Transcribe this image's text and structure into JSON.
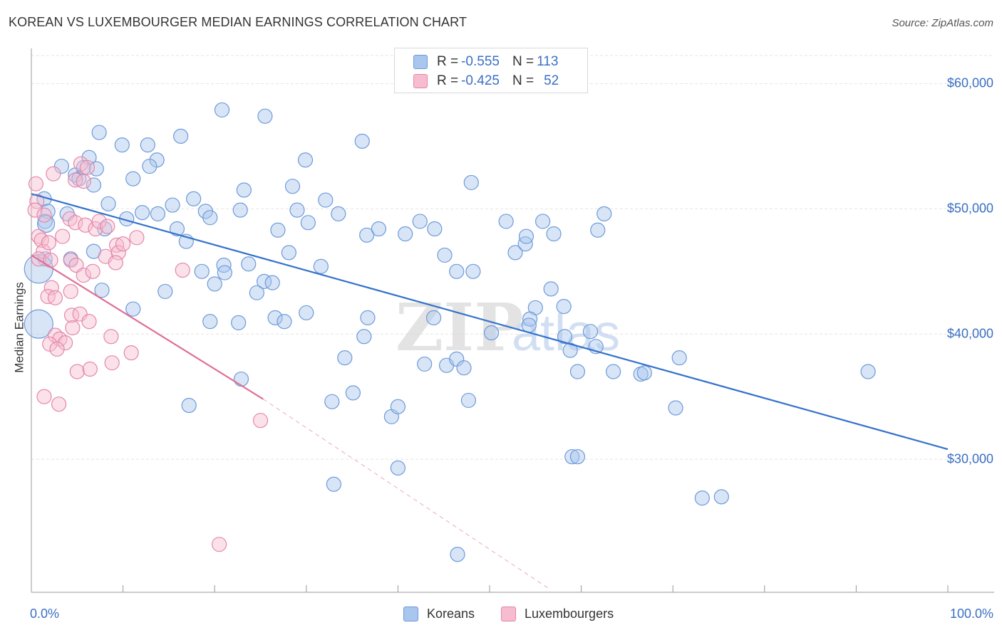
{
  "title": "KOREAN VS LUXEMBOURGER MEDIAN EARNINGS CORRELATION CHART",
  "source": "Source: ZipAtlas.com",
  "watermark": {
    "zip": "ZIP",
    "atlas": "atlas"
  },
  "legend_stats": [
    {
      "r_label": "R = ",
      "r_value": "-0.555",
      "n_label": "N = ",
      "n_value": "113",
      "color": "#a8c6ee",
      "border": "#6d9ad8"
    },
    {
      "r_label": "R = ",
      "r_value": "-0.425",
      "n_label": "N = ",
      "n_value": "52",
      "color": "#f7bcd0",
      "border": "#e487a8"
    }
  ],
  "chart_data": {
    "type": "scatter",
    "title": "KOREAN VS LUXEMBOURGER MEDIAN EARNINGS CORRELATION CHART",
    "ylabel": "Median Earnings",
    "xlabel": "",
    "xlim": [
      0,
      100
    ],
    "ylim": [
      19600,
      62700
    ],
    "x_tick_labels": [
      "0.0%",
      "100.0%"
    ],
    "y_ticks": [
      {
        "value": 30000,
        "label": "$30,000"
      },
      {
        "value": 40000,
        "label": "$40,000"
      },
      {
        "value": 50000,
        "label": "$50,000"
      },
      {
        "value": 60000,
        "label": "$60,000"
      }
    ],
    "grid": true,
    "legend_position": "bottom-center",
    "series": [
      {
        "name": "Koreans",
        "color": "#6d9ad8",
        "fill": "#a8c6ee",
        "trend": {
          "x": [
            0,
            100
          ],
          "y": [
            51200,
            30800
          ],
          "color": "#3372cc"
        },
        "points": [
          [
            1.4,
            50.8
          ],
          [
            1.8,
            49.8
          ],
          [
            1.5,
            49.0
          ],
          [
            1.6,
            48.8
          ],
          [
            3.3,
            53.4
          ],
          [
            3.9,
            49.6
          ],
          [
            4.8,
            52.7
          ],
          [
            6.3,
            54.1
          ],
          [
            5.2,
            52.4
          ],
          [
            5.7,
            53.3
          ],
          [
            7.1,
            53.2
          ],
          [
            6.8,
            51.9
          ],
          [
            7.4,
            56.1
          ],
          [
            9.9,
            55.1
          ],
          [
            8.4,
            50.4
          ],
          [
            8.0,
            48.4
          ],
          [
            10.4,
            49.2
          ],
          [
            12.7,
            55.1
          ],
          [
            11.1,
            52.4
          ],
          [
            13.7,
            53.9
          ],
          [
            12.9,
            53.4
          ],
          [
            12.1,
            49.7
          ],
          [
            13.8,
            49.6
          ],
          [
            15.4,
            50.3
          ],
          [
            15.9,
            48.4
          ],
          [
            16.3,
            55.8
          ],
          [
            16.9,
            47.4
          ],
          [
            17.7,
            50.8
          ],
          [
            19.0,
            49.8
          ],
          [
            19.5,
            49.3
          ],
          [
            20.8,
            57.9
          ],
          [
            23.2,
            51.5
          ],
          [
            22.8,
            49.9
          ],
          [
            25.5,
            57.4
          ],
          [
            26.9,
            48.3
          ],
          [
            28.1,
            46.5
          ],
          [
            28.5,
            51.8
          ],
          [
            29.0,
            49.9
          ],
          [
            29.9,
            53.9
          ],
          [
            30.2,
            48.9
          ],
          [
            32.1,
            50.7
          ],
          [
            33.5,
            49.6
          ],
          [
            36.6,
            47.9
          ],
          [
            36.1,
            55.4
          ],
          [
            37.9,
            48.4
          ],
          [
            40.8,
            48.0
          ],
          [
            42.4,
            49.0
          ],
          [
            44.0,
            48.4
          ],
          [
            45.1,
            46.3
          ],
          [
            46.4,
            45.0
          ],
          [
            48.2,
            45.0
          ],
          [
            48.0,
            52.1
          ],
          [
            51.8,
            49.0
          ],
          [
            50.2,
            40.1
          ],
          [
            52.8,
            46.5
          ],
          [
            53.9,
            47.2
          ],
          [
            54.0,
            47.8
          ],
          [
            55.0,
            42.1
          ],
          [
            54.4,
            41.2
          ],
          [
            55.8,
            49.0
          ],
          [
            57.0,
            48.0
          ],
          [
            56.7,
            43.6
          ],
          [
            58.1,
            42.2
          ],
          [
            58.2,
            39.8
          ],
          [
            59.0,
            30.2
          ],
          [
            59.6,
            37.0
          ],
          [
            61.0,
            40.2
          ],
          [
            61.6,
            39.0
          ],
          [
            61.8,
            48.3
          ],
          [
            62.5,
            49.6
          ],
          [
            63.5,
            37.0
          ],
          [
            66.5,
            36.8
          ],
          [
            70.3,
            34.1
          ],
          [
            73.2,
            26.9
          ],
          [
            75.3,
            27.0
          ],
          [
            91.3,
            37.0
          ],
          [
            1.5,
            46.0
          ],
          [
            4.3,
            46.0
          ],
          [
            6.8,
            46.6
          ],
          [
            7.7,
            43.5
          ],
          [
            11.1,
            42.0
          ],
          [
            14.6,
            43.4
          ],
          [
            18.6,
            45.0
          ],
          [
            19.5,
            41.0
          ],
          [
            20.0,
            44.0
          ],
          [
            21.0,
            45.5
          ],
          [
            21.1,
            44.9
          ],
          [
            22.6,
            40.9
          ],
          [
            22.9,
            36.4
          ],
          [
            23.7,
            45.6
          ],
          [
            24.6,
            43.3
          ],
          [
            25.4,
            44.2
          ],
          [
            26.3,
            44.1
          ],
          [
            26.6,
            41.3
          ],
          [
            27.6,
            41.0
          ],
          [
            30.0,
            41.7
          ],
          [
            31.6,
            45.4
          ],
          [
            32.8,
            34.6
          ],
          [
            33.0,
            28.0
          ],
          [
            34.2,
            38.1
          ],
          [
            35.1,
            35.3
          ],
          [
            36.3,
            39.8
          ],
          [
            36.7,
            41.3
          ],
          [
            39.3,
            33.4
          ],
          [
            40.0,
            34.2
          ],
          [
            40.0,
            29.3
          ],
          [
            42.9,
            37.6
          ],
          [
            43.9,
            41.3
          ],
          [
            45.3,
            37.5
          ],
          [
            46.4,
            38.0
          ],
          [
            46.5,
            22.4
          ],
          [
            47.2,
            37.3
          ],
          [
            47.7,
            34.7
          ],
          [
            58.8,
            38.7
          ],
          [
            59.6,
            30.2
          ],
          [
            66.9,
            36.9
          ],
          [
            70.7,
            38.1
          ],
          [
            0.8,
            45.2
          ],
          [
            0.8,
            40.8
          ],
          [
            17.2,
            34.3
          ],
          [
            54.3,
            40.7
          ]
        ],
        "sizes_note": "two larger points near x=0.8"
      },
      {
        "name": "Luxembourgers",
        "color": "#e487a8",
        "fill": "#f7bcd0",
        "trend": {
          "x": [
            0,
            25.3
          ],
          "y": [
            46300,
            34800
          ],
          "dashed_to": [
            56.6,
            19600
          ],
          "color": "#e07095"
        },
        "points": [
          [
            0.5,
            52.0
          ],
          [
            0.6,
            50.6
          ],
          [
            0.4,
            49.9
          ],
          [
            1.4,
            49.5
          ],
          [
            0.8,
            47.8
          ],
          [
            1.1,
            47.5
          ],
          [
            1.3,
            46.6
          ],
          [
            0.8,
            46.0
          ],
          [
            1.9,
            47.3
          ],
          [
            3.4,
            47.8
          ],
          [
            2.4,
            52.8
          ],
          [
            4.8,
            52.3
          ],
          [
            5.4,
            53.6
          ],
          [
            6.1,
            53.3
          ],
          [
            5.7,
            52.2
          ],
          [
            4.2,
            49.2
          ],
          [
            4.8,
            48.9
          ],
          [
            5.9,
            48.7
          ],
          [
            7.0,
            48.4
          ],
          [
            7.4,
            49.0
          ],
          [
            8.3,
            48.6
          ],
          [
            9.3,
            47.1
          ],
          [
            11.5,
            47.7
          ],
          [
            2.1,
            45.9
          ],
          [
            4.3,
            45.9
          ],
          [
            4.9,
            45.5
          ],
          [
            5.7,
            44.7
          ],
          [
            6.7,
            45.0
          ],
          [
            8.1,
            46.2
          ],
          [
            9.5,
            46.5
          ],
          [
            9.2,
            45.7
          ],
          [
            10.0,
            47.2
          ],
          [
            2.2,
            43.7
          ],
          [
            1.8,
            43.0
          ],
          [
            2.6,
            42.9
          ],
          [
            4.3,
            43.4
          ],
          [
            4.4,
            41.5
          ],
          [
            4.5,
            40.5
          ],
          [
            5.3,
            41.6
          ],
          [
            6.3,
            41.0
          ],
          [
            2.6,
            39.9
          ],
          [
            3.1,
            39.6
          ],
          [
            3.7,
            39.3
          ],
          [
            2.0,
            39.2
          ],
          [
            2.8,
            38.8
          ],
          [
            8.7,
            39.8
          ],
          [
            10.9,
            38.5
          ],
          [
            5.0,
            37.0
          ],
          [
            6.4,
            37.2
          ],
          [
            8.8,
            37.7
          ],
          [
            1.4,
            35.0
          ],
          [
            3.0,
            34.4
          ],
          [
            25.0,
            33.1
          ],
          [
            20.5,
            23.2
          ],
          [
            16.5,
            45.1
          ]
        ]
      }
    ]
  },
  "legend_bottom": [
    {
      "label": "Koreans",
      "color": "#a8c6ee",
      "border": "#6d9ad8"
    },
    {
      "label": "Luxembourgers",
      "color": "#f7bcd0",
      "border": "#e487a8"
    }
  ]
}
